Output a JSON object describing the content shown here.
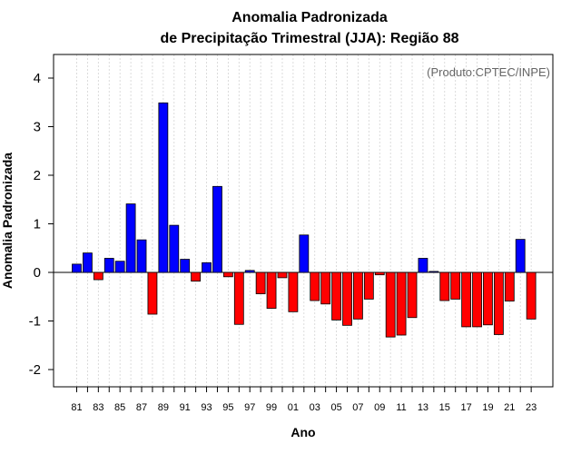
{
  "chart_data": {
    "type": "bar",
    "title_line1": "Anomalia Padronizada",
    "title_line2": "de Precipitação Trimestral (JJA): Região 88",
    "xlabel": "Ano",
    "ylabel": "Anomalia Padronizada",
    "annotation": "(Produto:CPTEC/INPE)",
    "ylim": [
      -2.35,
      4.5
    ],
    "yticks": [
      -2,
      -1,
      0,
      1,
      2,
      3,
      4
    ],
    "xtick_labels": [
      "81",
      "83",
      "85",
      "87",
      "89",
      "91",
      "93",
      "95",
      "97",
      "99",
      "01",
      "03",
      "05",
      "07",
      "09",
      "11",
      "13",
      "15",
      "17",
      "19",
      "21",
      "23"
    ],
    "positive_color": "#0000ff",
    "negative_color": "#ff0000",
    "categories": [
      "81",
      "82",
      "83",
      "84",
      "85",
      "86",
      "87",
      "88",
      "89",
      "90",
      "91",
      "92",
      "93",
      "94",
      "95",
      "96",
      "97",
      "98",
      "99",
      "00",
      "01",
      "02",
      "03",
      "04",
      "05",
      "06",
      "07",
      "08",
      "09",
      "10",
      "11",
      "12",
      "13",
      "14",
      "15",
      "16",
      "17",
      "18",
      "19",
      "20",
      "21",
      "22",
      "23"
    ],
    "values": [
      0.17,
      0.4,
      -0.15,
      0.29,
      0.23,
      1.41,
      0.67,
      -0.86,
      3.49,
      0.97,
      0.27,
      -0.18,
      0.2,
      1.77,
      -0.09,
      -1.07,
      0.04,
      -0.44,
      -0.74,
      -0.11,
      -0.81,
      0.77,
      -0.58,
      -0.65,
      -0.98,
      -1.09,
      -0.96,
      -0.55,
      -0.05,
      -1.33,
      -1.29,
      -0.93,
      0.29,
      0.02,
      -0.58,
      -0.55,
      -1.12,
      -1.12,
      -1.08,
      -1.28,
      -0.59,
      0.68,
      -0.96
    ]
  }
}
